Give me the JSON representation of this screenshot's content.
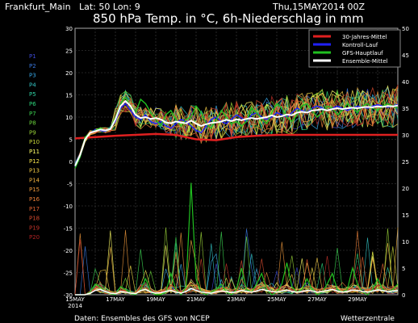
{
  "header": {
    "station": "Frankfurt_Main",
    "latlon": "Lat: 50 Lon: 9",
    "run": "Thu,15MAY2014 00Z",
    "title": "850 hPa Temp. in °C, 6h-Niederschlag in mm"
  },
  "footer": {
    "source": "Daten: Ensembles des GFS von NCEP",
    "brand": "Wetterzentrale"
  },
  "colors": {
    "background": "#000000",
    "grid": "#555555",
    "climatology": "#e02020",
    "control": "#2020ff",
    "operational": "#20c020",
    "ensemble_mean": "#ffffff"
  },
  "members": [
    {
      "label": "P1",
      "color": "#3d4bd6"
    },
    {
      "label": "P2",
      "color": "#3a79e0"
    },
    {
      "label": "P3",
      "color": "#37a7e6"
    },
    {
      "label": "P4",
      "color": "#33c4c4"
    },
    {
      "label": "P5",
      "color": "#2fd0a2"
    },
    {
      "label": "P6",
      "color": "#2cd47a"
    },
    {
      "label": "P7",
      "color": "#3cd552"
    },
    {
      "label": "P8",
      "color": "#6cd53c"
    },
    {
      "label": "P9",
      "color": "#9ad438"
    },
    {
      "label": "P10",
      "color": "#c4d436"
    },
    {
      "label": "P11",
      "color": "#ffff66"
    },
    {
      "label": "P12",
      "color": "#f3e04a"
    },
    {
      "label": "P13",
      "color": "#f0c845"
    },
    {
      "label": "P14",
      "color": "#eeb040"
    },
    {
      "label": "P15",
      "color": "#ec973b"
    },
    {
      "label": "P16",
      "color": "#e87e37"
    },
    {
      "label": "P17",
      "color": "#e06232"
    },
    {
      "label": "P18",
      "color": "#d44a2e"
    },
    {
      "label": "P19",
      "color": "#c3342a"
    },
    {
      "label": "P20",
      "color": "#b02224"
    }
  ],
  "chart_data": {
    "type": "line",
    "xlabel": "",
    "ylabel": "",
    "x_ticks": [
      "15MAY\n2014",
      "17MAY",
      "19MAY",
      "21MAY",
      "23MAY",
      "25MAY",
      "27MAY",
      "29MAY"
    ],
    "x_range_days": [
      0,
      16
    ],
    "ylim_left": [
      -30,
      30
    ],
    "ylim_right": [
      0,
      50
    ],
    "y_ticks_left": [
      -30,
      -25,
      -20,
      -15,
      -10,
      -5,
      0,
      5,
      10,
      15,
      20,
      25,
      30
    ],
    "y_ticks_right": [
      0,
      5,
      10,
      15,
      20,
      25,
      30,
      35,
      40,
      45,
      50
    ],
    "grid": true,
    "legend": {
      "placement": "top-right",
      "entries": [
        "30-Jahres-Mittel",
        "Kontroll-Lauf",
        "GFS-Hauptlauf",
        "Ensemble-Mittel"
      ]
    },
    "climatology": [
      5.2,
      5.5,
      5.8,
      6.0,
      6.2,
      6.0,
      5.0,
      4.8,
      5.5,
      5.8,
      6.0,
      6.0,
      6.0,
      6.0,
      6.0,
      6.0,
      6.0
    ],
    "ensemble_mean": [
      -1.0,
      1.5,
      5.0,
      6.5,
      6.8,
      7.2,
      7.0,
      7.3,
      9.5,
      12.5,
      13.6,
      12.5,
      10.5,
      9.8,
      10.0,
      9.6,
      9.8,
      9.5,
      8.8,
      8.6,
      9.0,
      8.8,
      8.6,
      9.2,
      8.5,
      8.0,
      8.4,
      8.7,
      8.8,
      9.0,
      9.4,
      9.1,
      9.5,
      9.3,
      9.6,
      9.8,
      9.6,
      9.8,
      10.0,
      10.4,
      10.0,
      10.2,
      10.6,
      10.4,
      11.0,
      11.2,
      11.0,
      11.5,
      11.6,
      11.8,
      11.5,
      11.8,
      12.0,
      11.8,
      12.0,
      12.1,
      12.0,
      12.2,
      12.3,
      12.2,
      12.4,
      12.3,
      12.5,
      12.4,
      12.6
    ],
    "operational": [
      -1.5,
      1.0,
      5.5,
      6.5,
      7.0,
      7.5,
      7.0,
      7.5,
      10.0,
      13.0,
      14.5,
      12.0,
      11.0,
      14.0,
      13.0,
      11.0,
      9.5,
      8.0,
      10.5,
      11.5,
      9.5,
      8.0,
      9.5,
      10.0,
      12.5,
      11.0,
      8.5,
      7.5,
      9.5,
      11.5,
      10.0,
      8.5,
      9.0,
      8.0,
      9.0,
      12.0,
      11.0,
      9.5,
      8.5,
      11.0,
      13.0,
      12.0,
      10.0,
      9.0,
      10.5,
      12.5,
      13.0,
      11.5,
      10.0,
      11.0,
      12.5,
      12.0,
      10.5,
      11.5,
      13.0,
      12.0,
      11.0,
      12.5,
      13.0,
      12.0,
      11.5,
      12.5,
      13.0,
      12.5,
      12.0
    ],
    "control": [
      -1.2,
      1.2,
      5.2,
      6.4,
      7.2,
      7.0,
      6.8,
      7.6,
      9.0,
      12.0,
      13.0,
      11.5,
      10.0,
      9.5,
      10.5,
      9.0,
      8.5,
      9.0,
      8.0,
      7.5,
      8.5,
      9.5,
      9.0,
      8.0,
      7.0,
      6.5,
      8.0,
      9.5,
      10.0,
      9.0,
      8.5,
      9.5,
      10.5,
      9.8,
      9.0,
      10.5,
      11.0,
      10.0,
      9.5,
      10.0,
      11.0,
      10.5,
      10.0,
      11.0,
      12.0,
      11.5,
      11.0,
      12.0,
      12.5,
      12.0,
      11.5,
      12.0,
      12.5,
      12.0,
      11.5,
      12.0,
      12.5,
      12.2,
      12.0,
      12.5,
      12.8,
      12.5,
      12.2,
      12.5,
      12.8
    ],
    "precip_mean": [
      0,
      0,
      0,
      0.3,
      0.8,
      1.0,
      0.6,
      0.3,
      0.2,
      0.6,
      0.5,
      0.3,
      0.2,
      0.8,
      1.0,
      0.5,
      0.3,
      0.4,
      0.6,
      0.8,
      0.5,
      0.3,
      0.6,
      1.2,
      0.8,
      0.5,
      0.4,
      0.3,
      0.5,
      0.7,
      0.6,
      0.4,
      0.5,
      0.8,
      0.6,
      0.5,
      0.7,
      1.0,
      0.8,
      0.6,
      0.5,
      0.7,
      0.9,
      0.6,
      0.5,
      0.6,
      0.8,
      0.7,
      0.5,
      0.6,
      0.8,
      1.0,
      0.7,
      0.5,
      0.6,
      0.9,
      0.8,
      0.6,
      0.5,
      0.7,
      0.9,
      0.8,
      0.6,
      0.7,
      0.8
    ],
    "precip_operational": [
      0,
      0,
      0,
      0.5,
      2.0,
      1.5,
      0.5,
      0.2,
      0.0,
      1.5,
      1.0,
      0.2,
      0.0,
      1.0,
      3.0,
      0.5,
      0.0,
      0.0,
      0.5,
      4.0,
      1.0,
      0.0,
      1.5,
      21.0,
      3.0,
      0.5,
      0.0,
      0.5,
      1.0,
      2.0,
      0.5,
      0.0,
      1.0,
      5.0,
      1.0,
      0.5,
      2.0,
      4.0,
      1.0,
      0.0,
      0.5,
      2.0,
      6.0,
      1.5,
      0.5,
      1.0,
      3.0,
      1.0,
      0.0,
      0.5,
      2.0,
      4.0,
      1.0,
      0.5,
      1.0,
      5.0,
      2.0,
      0.5,
      0.0,
      1.0,
      3.0,
      1.0,
      0.5,
      1.0,
      2.0
    ]
  }
}
